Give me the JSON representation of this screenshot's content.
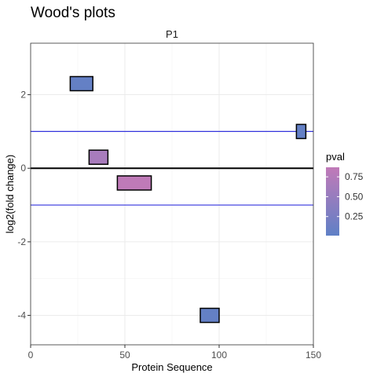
{
  "title": "Wood's plots",
  "chart_data": {
    "type": "woods-plot",
    "title": "Wood's plots",
    "panel_title": "P1",
    "xlabel": "Protein Sequence",
    "ylabel": "log2(fold change)",
    "xlim": [
      0,
      150
    ],
    "ylim": [
      -4.8,
      3.4
    ],
    "x_ticks": [
      0,
      50,
      100,
      150
    ],
    "y_ticks": [
      -4,
      -2,
      0,
      2
    ],
    "grid": true,
    "zero_line": 0,
    "threshold_lines": [
      1,
      -1
    ],
    "threshold_color": "#3333dd",
    "legend": {
      "title": "pval",
      "position": "right",
      "ticks": [
        0.25,
        0.5,
        0.75
      ],
      "tick_labels": [
        "0.25",
        "0.50",
        "0.75"
      ],
      "range": [
        0.01,
        0.87
      ],
      "color_low": "#5f80c6",
      "color_high": "#c17ab8"
    },
    "peptides": [
      {
        "start": 21,
        "end": 33,
        "value": 2.3,
        "pval": 0.05
      },
      {
        "start": 141,
        "end": 146,
        "value": 1.0,
        "pval": 0.05
      },
      {
        "start": 31,
        "end": 41,
        "value": 0.3,
        "pval": 0.65
      },
      {
        "start": 46,
        "end": 64,
        "value": -0.4,
        "pval": 0.85
      },
      {
        "start": 90,
        "end": 100,
        "value": -4.0,
        "pval": 0.05
      }
    ]
  }
}
